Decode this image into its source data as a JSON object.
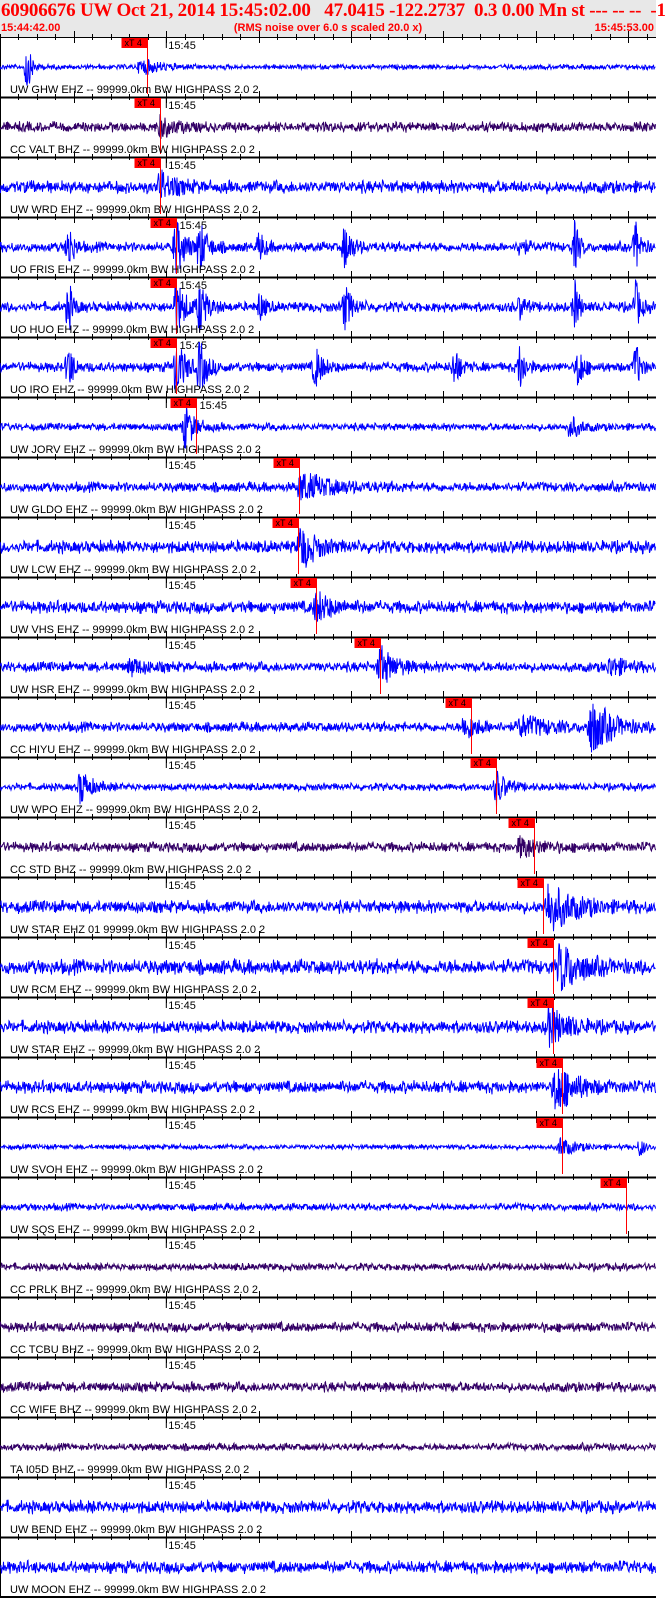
{
  "header": {
    "title": "60906676 UW Oct 21, 2014 15:45:02.00   47.0415 -122.2737  0.3 0.00 Mn st --- -- --  -1",
    "start_time": "15:44:42.00",
    "end_time": "15:45:53.00",
    "note": "(RMS noise over 6.0 s scaled 20.0 x)"
  },
  "chart_data": {
    "type": "line",
    "title": "",
    "x_range": [
      "15:44:42.00",
      "15:45:53.00"
    ],
    "time_label": "15:45",
    "pick_label": "xT 4",
    "colors": {
      "blue": "#0000ff",
      "purple": "#330066",
      "pick": "#ff0000",
      "header_text": "#ff0000"
    },
    "traces": [
      {
        "label": "UW GHW EHZ -- 99999.0km BW  HIGHPASS  2.0  2",
        "color": "blue",
        "noise": 2,
        "pick": "15:44:57.9",
        "bursts": [
          [
            "15:44:44.9",
            25,
            1
          ],
          [
            "15:44:57.2",
            8,
            4
          ]
        ]
      },
      {
        "label": "CC VALT BHZ -- 99999.0km BW  HIGHPASS  2.0  2",
        "color": "purple",
        "noise": 4,
        "pick": "15:44:59.3",
        "bursts": [
          [
            "15:44:59.3",
            10,
            3
          ]
        ]
      },
      {
        "label": "UW WRD EHZ -- 99999.0km BW  HIGHPASS  2.0  2",
        "color": "blue",
        "noise": 5,
        "pick": "15:44:59.3",
        "bursts": [
          [
            "15:44:59.3",
            14,
            3
          ]
        ]
      },
      {
        "label": "UO FRIS EHZ -- 99999.0km BW  HIGHPASS  2.0  2",
        "color": "blue",
        "noise": 4,
        "pick": "15:45:01.0",
        "bursts": [
          [
            "15:44:49.4",
            25,
            1
          ],
          [
            "15:45:01.0",
            28,
            2
          ],
          [
            "15:45:03.6",
            25,
            1.5
          ],
          [
            "15:45:10.1",
            15,
            1
          ],
          [
            "15:45:19.3",
            22,
            1.5
          ],
          [
            "15:45:38.3",
            12,
            1
          ],
          [
            "15:45:44.2",
            25,
            1
          ],
          [
            "15:45:50.8",
            25,
            1
          ]
        ]
      },
      {
        "label": "UO HUO EHZ -- 99999.0km BW  HIGHPASS  2.0  2",
        "color": "blue",
        "noise": 4,
        "pick": "15:45:01.0",
        "bursts": [
          [
            "15:44:49.4",
            25,
            1
          ],
          [
            "15:45:01.0",
            28,
            2
          ],
          [
            "15:45:03.6",
            25,
            1.5
          ],
          [
            "15:45:10.1",
            15,
            1
          ],
          [
            "15:45:19.3",
            22,
            1.5
          ],
          [
            "15:45:38.3",
            12,
            1
          ],
          [
            "15:45:44.2",
            25,
            1
          ],
          [
            "15:45:50.8",
            25,
            1
          ]
        ]
      },
      {
        "label": "UO IRO EHZ -- 99999.0km BW  HIGHPASS  2.0  2",
        "color": "blue",
        "noise": 4,
        "pick": "15:45:01.0",
        "bursts": [
          [
            "15:44:49.4",
            25,
            1
          ],
          [
            "15:45:01.0",
            28,
            2
          ],
          [
            "15:45:03.6",
            25,
            1.5
          ],
          [
            "15:45:16.1",
            22,
            1.5
          ],
          [
            "15:45:31.2",
            22,
            1
          ],
          [
            "15:45:38.3",
            25,
            1
          ],
          [
            "15:45:44.6",
            25,
            1
          ],
          [
            "15:45:50.8",
            25,
            1
          ]
        ]
      },
      {
        "label": "UW JORV EHZ -- 99999.0km BW  HIGHPASS  2.0  2",
        "color": "blue",
        "noise": 3,
        "pick": "15:45:03.2",
        "bursts": [
          [
            "15:45:02.0",
            22,
            2
          ],
          [
            "15:45:43.7",
            12,
            2
          ]
        ]
      },
      {
        "label": "UW GLDO EHZ -- 99999.0km BW  HIGHPASS  2.0  2",
        "color": "blue",
        "noise": 4,
        "pick": "15:45:14.4",
        "bursts": [
          [
            "15:45:14.5",
            14,
            6
          ]
        ]
      },
      {
        "label": "UW LCW EHZ -- 99999.0km BW  HIGHPASS  2.0  2",
        "color": "blue",
        "noise": 5,
        "pick": "15:45:14.3",
        "bursts": [
          [
            "15:45:14.5",
            22,
            3
          ]
        ]
      },
      {
        "label": "UW VHS EHZ -- 99999.0km BW  HIGHPASS  2.0  2",
        "color": "blue",
        "noise": 5,
        "pick": "15:45:16.2",
        "bursts": [
          [
            "15:45:16.2",
            15,
            3
          ]
        ]
      },
      {
        "label": "UW HSR EHZ -- 99999.0km BW  HIGHPASS  2.0  2",
        "color": "blue",
        "noise": 4,
        "pick": "15:45:23.1",
        "bursts": [
          [
            "15:44:56.1",
            8,
            3
          ],
          [
            "15:45:23.1",
            20,
            3
          ],
          [
            "15:45:48.0",
            10,
            3
          ]
        ]
      },
      {
        "label": "CC HIYU EHZ -- 99999.0km BW  HIGHPASS  2.0  2",
        "color": "blue",
        "noise": 4,
        "pick": "15:45:33.0",
        "bursts": [
          [
            "15:45:32.3",
            12,
            3
          ],
          [
            "15:45:38.3",
            10,
            6
          ],
          [
            "15:45:45.9",
            28,
            4
          ]
        ]
      },
      {
        "label": "UW WPO EHZ -- 99999.0km BW  HIGHPASS  2.0  2",
        "color": "blue",
        "noise": 3,
        "pick": "15:45:35.7",
        "bursts": [
          [
            "15:44:50.7",
            18,
            2
          ],
          [
            "15:45:35.7",
            18,
            2
          ]
        ]
      },
      {
        "label": "CC STD BHZ -- 99999.0km BW  HIGHPASS  2.0  2",
        "color": "purple",
        "noise": 4,
        "pick": "15:45:39.8",
        "bursts": [
          [
            "15:45:38.3",
            10,
            4
          ]
        ]
      },
      {
        "label": "UW STAR EHZ 01 99999.0km BW  HIGHPASS  2.0  2",
        "color": "blue",
        "noise": 5,
        "pick": "15:45:40.8",
        "bursts": [
          [
            "15:45:41.3",
            25,
            5
          ]
        ]
      },
      {
        "label": "UW RCM EHZ -- 99999.0km BW  HIGHPASS  2.0  2",
        "color": "blue",
        "noise": 6,
        "pick": "15:45:41.8",
        "bursts": [
          [
            "15:45:42.6",
            25,
            4
          ]
        ]
      },
      {
        "label": "UW STAR EHZ -- 99999.0km BW  HIGHPASS  2.0  2",
        "color": "blue",
        "noise": 5,
        "pick": "15:45:41.8",
        "bursts": [
          [
            "15:45:41.3",
            20,
            4
          ]
        ]
      },
      {
        "label": "UW RCS EHZ -- 99999.0km BW  HIGHPASS  2.0  2",
        "color": "blue",
        "noise": 5,
        "pick": "15:45:42.8",
        "bursts": [
          [
            "15:45:42.1",
            25,
            4
          ]
        ]
      },
      {
        "label": "UW SVOH EHZ -- 99999.0km BW  HIGHPASS  2.0  2",
        "color": "blue",
        "noise": 2,
        "pick": "15:45:42.8",
        "bursts": [
          [
            "15:45:42.6",
            10,
            3
          ],
          [
            "15:45:51.3",
            10,
            1
          ]
        ]
      },
      {
        "label": "UW SQS EHZ -- 99999.0km BW  HIGHPASS  2.0  2",
        "color": "blue",
        "noise": 3,
        "pick": "15:45:49.7",
        "bursts": []
      },
      {
        "label": "CC PRLK BHZ -- 99999.0km BW  HIGHPASS  2.0  2",
        "color": "purple",
        "noise": 3,
        "bursts": []
      },
      {
        "label": "CC TCBU BHZ -- 99999.0km BW  HIGHPASS  2.0  2",
        "color": "purple",
        "noise": 4,
        "bursts": []
      },
      {
        "label": "CC WIFE BHZ -- 99999.0km BW  HIGHPASS  2.0  2",
        "color": "purple",
        "noise": 4,
        "bursts": []
      },
      {
        "label": "TA I05D BHZ -- 99999.0km BW  HIGHPASS  2.0  2",
        "color": "purple",
        "noise": 3,
        "bursts": []
      },
      {
        "label": "UW BEND EHZ -- 99999.0km BW  HIGHPASS  2.0  2",
        "color": "blue",
        "noise": 5,
        "bursts": []
      },
      {
        "label": "UW MOON EHZ -- 99999.0km BW  HIGHPASS  2.0  2",
        "color": "blue",
        "noise": 5,
        "bursts": []
      }
    ]
  }
}
